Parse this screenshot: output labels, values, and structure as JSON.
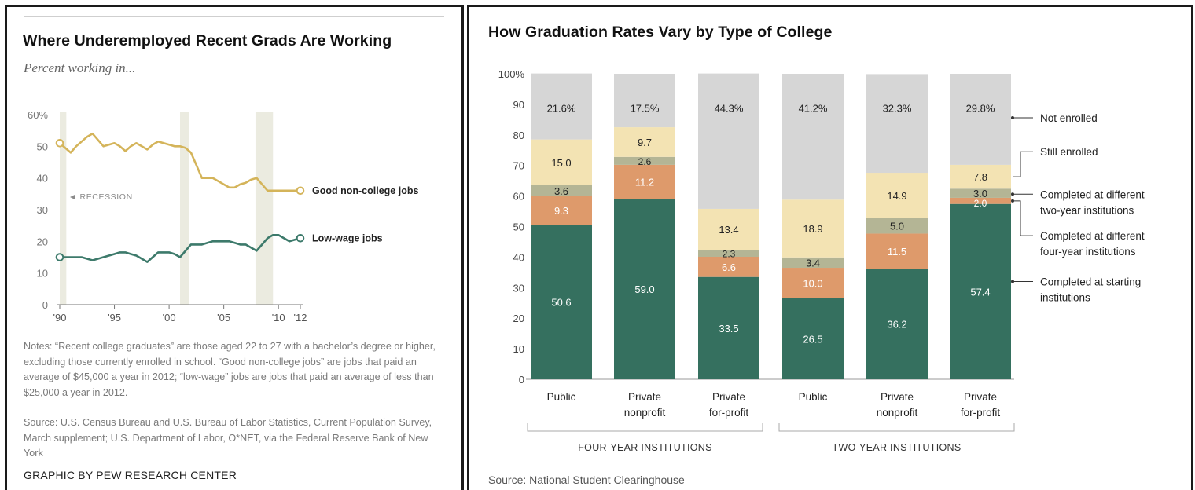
{
  "left": {
    "title": "Where Underemployed Recent Grads Are Working",
    "subtitle": "Percent working in...",
    "notes": "Notes: “Recent college graduates” are those aged 22 to 27 with a bachelor’s degree or higher, excluding those currently enrolled in school. “Good non-college jobs” are jobs that paid an average of $45,000 a year in 2012; “low-wage” jobs are jobs that paid an average of less than $25,000 a year in 2012.",
    "source": "Source: U.S. Census Bureau and U.S. Bureau of Labor Statistics, Current Population Survey, March supplement; U.S. Department of Labor, O*NET, via the Federal Reserve Bank of New York",
    "credit": "GRAPHIC BY PEW RESEARCH CENTER"
  },
  "right": {
    "title": "How Graduation Rates Vary by Type of College",
    "source": "Source: National Student Clearinghouse"
  },
  "chart_data": [
    {
      "type": "line",
      "title": "Where Underemployed Recent Grads Are Working",
      "subtitle": "Percent working in...",
      "ylim": [
        0,
        60
      ],
      "yticks": [
        0,
        10,
        20,
        30,
        40,
        50,
        60
      ],
      "ytick_labels": [
        "0",
        "10",
        "20",
        "30",
        "40",
        "50",
        "60%"
      ],
      "xlim": [
        1990,
        2012
      ],
      "xticks": [
        1990,
        1995,
        2000,
        2005,
        2010,
        2012
      ],
      "xtick_labels": [
        "'90",
        "'95",
        "'00",
        "'05",
        "'10",
        "'12"
      ],
      "recessions": [
        [
          1990,
          1990.6
        ],
        [
          2001,
          2001.8
        ],
        [
          2007.9,
          2009.5
        ]
      ],
      "recession_label": "◄ RECESSION",
      "x": [
        1990,
        1990.5,
        1991,
        1991.5,
        1992,
        1992.5,
        1993,
        1993.5,
        1994,
        1994.5,
        1995,
        1995.5,
        1996,
        1996.5,
        1997,
        1997.5,
        1998,
        1998.5,
        1999,
        1999.5,
        2000,
        2000.5,
        2001,
        2001.5,
        2002,
        2002.5,
        2003,
        2003.5,
        2004,
        2004.5,
        2005,
        2005.5,
        2006,
        2006.5,
        2007,
        2007.5,
        2008,
        2008.5,
        2009,
        2009.5,
        2010,
        2010.5,
        2011,
        2011.5,
        2012
      ],
      "series": [
        {
          "name": "Good non-college jobs",
          "color": "#d4b45a",
          "values": [
            51,
            49.5,
            48,
            50,
            51.5,
            53,
            54,
            52,
            50,
            50.5,
            51,
            50,
            48.5,
            50,
            51,
            50,
            49,
            50.5,
            51.5,
            51,
            50.5,
            50,
            50,
            49.5,
            48,
            44,
            40,
            40,
            40,
            39,
            38,
            37,
            37,
            38,
            38.5,
            39.5,
            40,
            38,
            36,
            36,
            36,
            36,
            36,
            36,
            36
          ]
        },
        {
          "name": "Low-wage jobs",
          "color": "#3d7a6b",
          "values": [
            15,
            15,
            15,
            15,
            15,
            14.5,
            14,
            14.5,
            15,
            15.5,
            16,
            16.5,
            16.5,
            16,
            15.5,
            14.5,
            13.5,
            15,
            16.5,
            16.5,
            16.5,
            16,
            15,
            17,
            19,
            19,
            19,
            19.5,
            20,
            20,
            20,
            20,
            19.5,
            19,
            19,
            18,
            17,
            19,
            21,
            22,
            22,
            21,
            20,
            20.5,
            21
          ]
        }
      ]
    },
    {
      "type": "bar",
      "stacked": true,
      "title": "How Graduation Rates Vary by Type of College",
      "ylim": [
        0,
        100
      ],
      "yticks": [
        0,
        10,
        20,
        30,
        40,
        50,
        60,
        70,
        80,
        90,
        100
      ],
      "ytick_labels": [
        "0",
        "10",
        "20",
        "30",
        "40",
        "50",
        "60",
        "70",
        "80",
        "90",
        "100%"
      ],
      "categories": [
        "Public",
        "Private nonprofit",
        "Private for-profit",
        "Public",
        "Private nonprofit",
        "Private for-profit"
      ],
      "groups": [
        {
          "label": "FOUR-YEAR INSTITUTIONS",
          "categories": [
            0,
            1,
            2
          ]
        },
        {
          "label": "TWO-YEAR INSTITUTIONS",
          "categories": [
            3,
            4,
            5
          ]
        }
      ],
      "series": [
        {
          "name": "Completed at starting institutions",
          "color": "#35705f",
          "values": [
            50.6,
            59.0,
            33.5,
            26.5,
            36.2,
            57.4
          ]
        },
        {
          "name": "Completed at different four-year institutions",
          "color": "#de9a6b",
          "values": [
            9.3,
            11.2,
            6.6,
            10.0,
            11.5,
            2.0
          ]
        },
        {
          "name": "Completed at different two-year institutions",
          "color": "#b4b595",
          "values": [
            3.6,
            2.6,
            2.3,
            3.4,
            5.0,
            3.0
          ]
        },
        {
          "name": "Still enrolled",
          "color": "#f3e3b3",
          "values": [
            15.0,
            9.7,
            13.4,
            18.9,
            14.9,
            7.8
          ]
        },
        {
          "name": "Not enrolled",
          "color": "#d6d6d6",
          "values": [
            21.6,
            17.5,
            44.3,
            41.2,
            32.3,
            29.8
          ]
        }
      ],
      "legend_labels": [
        "Not enrolled",
        "Still enrolled",
        "Completed at different two-year institutions",
        "Completed at different four-year institutions",
        "Completed at starting institutions"
      ],
      "legend_position": "right"
    }
  ]
}
